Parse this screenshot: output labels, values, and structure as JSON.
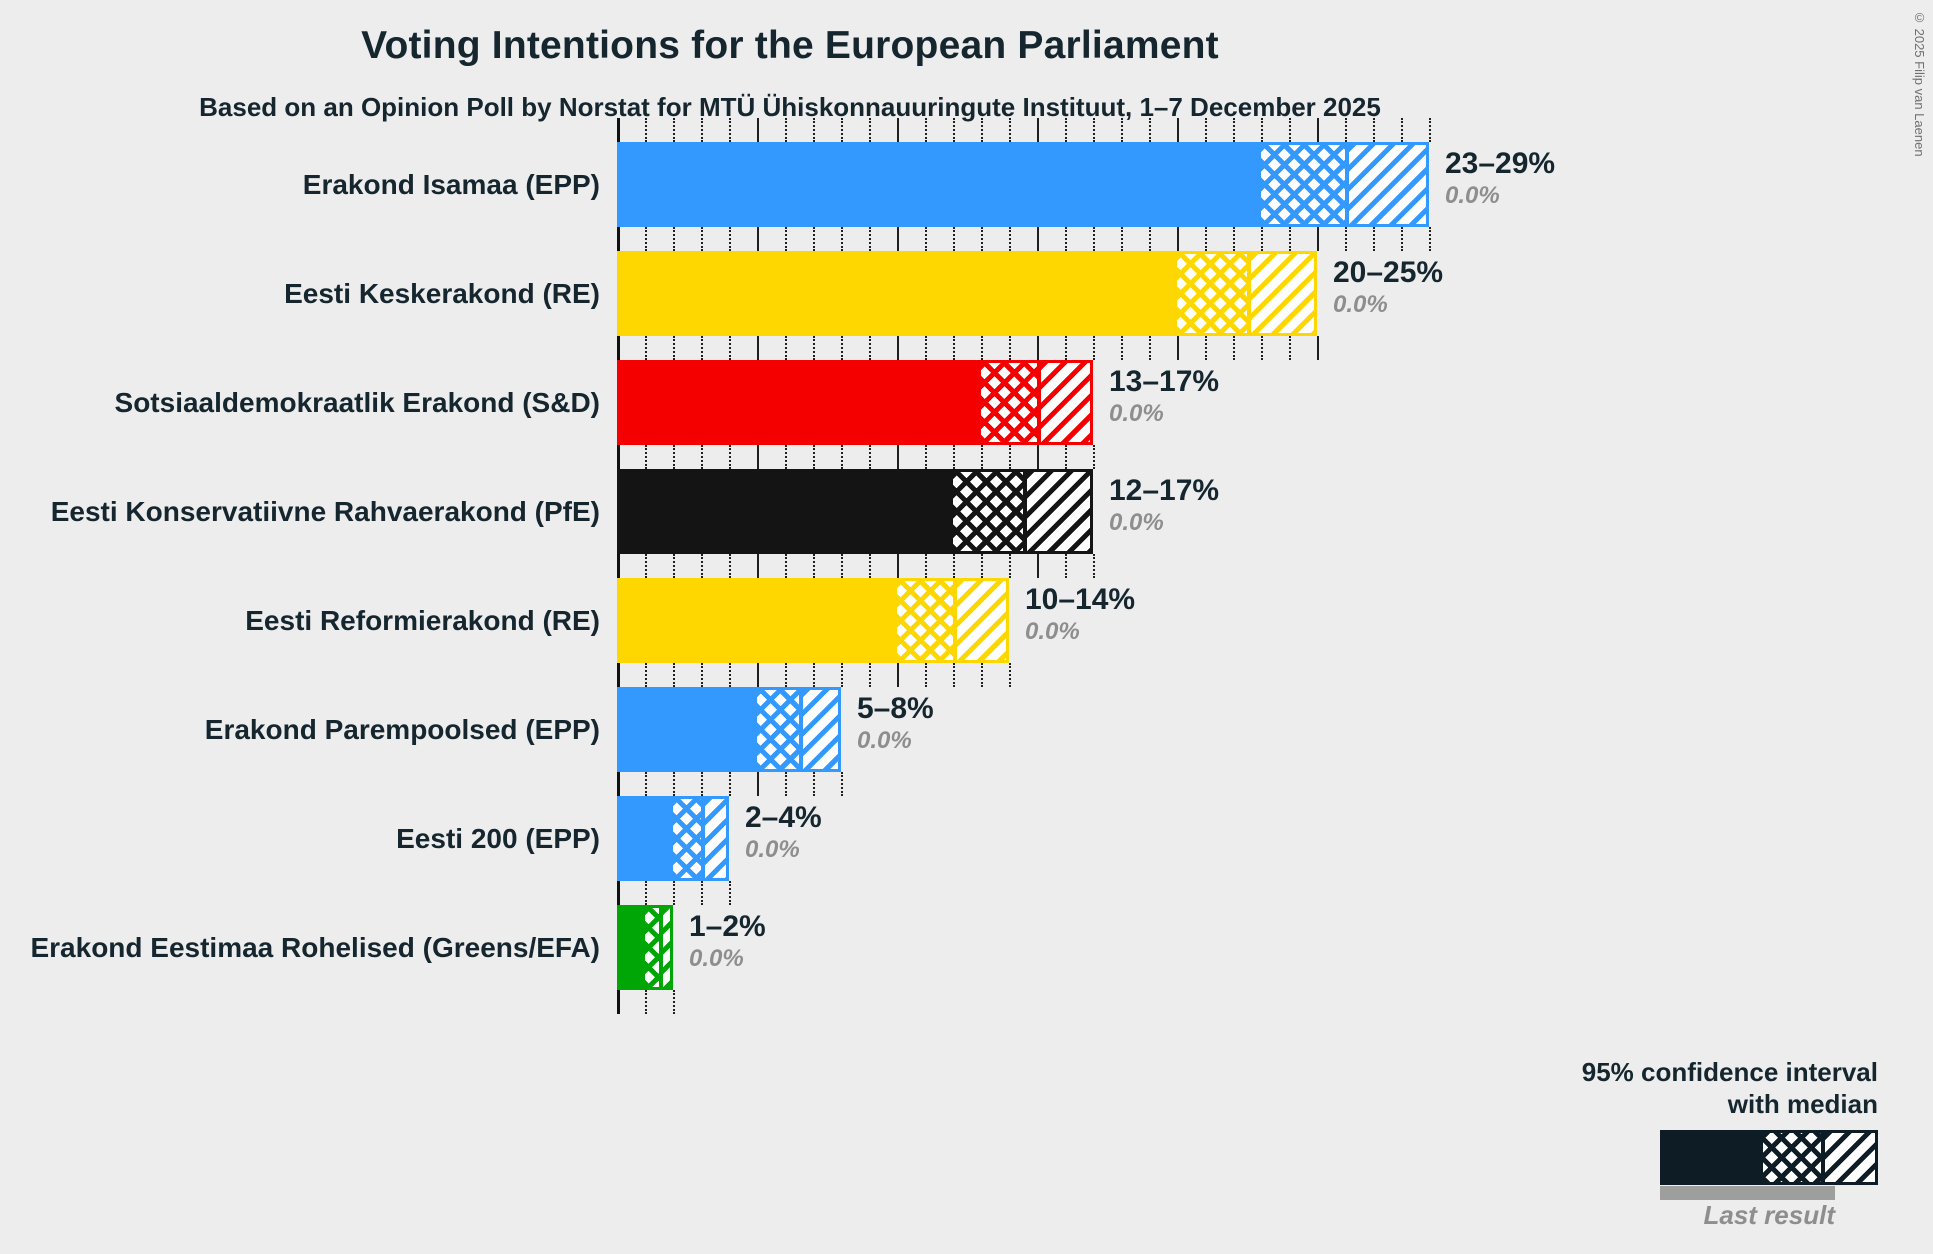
{
  "header": {
    "title": "Voting Intentions for the European Parliament",
    "subtitle": "Based on an Opinion Poll by Norstat for MTÜ Ühiskonnauuringute Instituut, 1–7 December 2025"
  },
  "copyright": "© 2025 Filip van Laenen",
  "legend": {
    "ci_line1": "95% confidence interval",
    "ci_line2": "with median",
    "last_result": "Last result"
  },
  "colors": {
    "background": "#EDEDED",
    "text": "#15262F",
    "muted_gray": "#8E8E8E",
    "gridline": "#1F1F1F",
    "legend_sample": "#0E1C26",
    "last_result_marker": "#9E9E9E"
  },
  "chart_data": {
    "type": "bar",
    "orientation": "horizontal",
    "value_unit": "%",
    "x_axis": {
      "min": 0,
      "max": 29,
      "minor_gridline_step": 1,
      "major_gridline_step": 5,
      "tick_labels_visible": false
    },
    "note": "Bars show 95% confidence interval: solid up to lower bound, crosshatch to median, diagonal hatch to upper bound. Gray value below each range is the last result.",
    "bars": [
      {
        "party": "Erakond Isamaa (EPP)",
        "color": "#3399FF",
        "low": 23,
        "median": 26,
        "high": 29,
        "label": "23–29%",
        "last_result": 0.0,
        "last_result_label": "0.0%"
      },
      {
        "party": "Eesti Keskerakond (RE)",
        "color": "#FFD700",
        "low": 20,
        "median": 22.5,
        "high": 25,
        "label": "20–25%",
        "last_result": 0.0,
        "last_result_label": "0.0%"
      },
      {
        "party": "Sotsiaaldemokraatlik Erakond (S&D)",
        "color": "#F40000",
        "low": 13,
        "median": 15,
        "high": 17,
        "label": "13–17%",
        "last_result": 0.0,
        "last_result_label": "0.0%"
      },
      {
        "party": "Eesti Konservatiivne Rahvaerakond (PfE)",
        "color": "#141414",
        "low": 12,
        "median": 14.5,
        "high": 17,
        "label": "12–17%",
        "last_result": 0.0,
        "last_result_label": "0.0%"
      },
      {
        "party": "Eesti Reformierakond (RE)",
        "color": "#FFD700",
        "low": 10,
        "median": 12,
        "high": 14,
        "label": "10–14%",
        "last_result": 0.0,
        "last_result_label": "0.0%"
      },
      {
        "party": "Erakond Parempoolsed (EPP)",
        "color": "#3399FF",
        "low": 5,
        "median": 6.5,
        "high": 8,
        "label": "5–8%",
        "last_result": 0.0,
        "last_result_label": "0.0%"
      },
      {
        "party": "Eesti 200 (EPP)",
        "color": "#3399FF",
        "low": 2,
        "median": 3,
        "high": 4,
        "label": "2–4%",
        "last_result": 0.0,
        "last_result_label": "0.0%"
      },
      {
        "party": "Erakond Eestimaa Rohelised (Greens/EFA)",
        "color": "#00A606",
        "low": 1,
        "median": 1.5,
        "high": 2,
        "label": "1–2%",
        "last_result": 0.0,
        "last_result_label": "0.0%"
      }
    ]
  }
}
